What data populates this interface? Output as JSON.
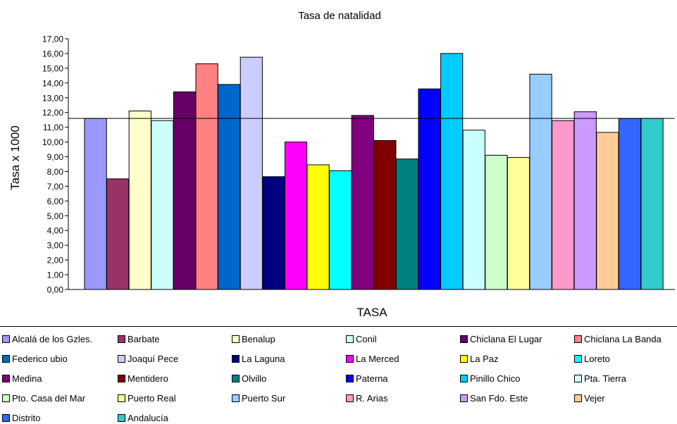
{
  "chart_data": {
    "type": "bar",
    "title": "Tasa  de natalidad",
    "xlabel": "TASA",
    "ylabel": "Tasa  x 1000",
    "ylim": [
      0,
      17
    ],
    "ytick_step": 1,
    "ytick_labels": [
      "0,00",
      "1,00",
      "2,00",
      "3,00",
      "4,00",
      "5,00",
      "6,00",
      "7,00",
      "8,00",
      "9,00",
      "10,00",
      "11,00",
      "12,00",
      "13,00",
      "14,00",
      "15,00",
      "16,00",
      "17,00"
    ],
    "reference_line": 11.6,
    "grid": false,
    "legend_placement": "bottom",
    "series": [
      {
        "name": "Alcalá de los Gzles.",
        "value": 11.6,
        "color": "#9999ff"
      },
      {
        "name": "Barbate",
        "value": 7.5,
        "color": "#993366"
      },
      {
        "name": "Benalup",
        "value": 12.1,
        "color": "#ffffcc"
      },
      {
        "name": "Conil",
        "value": 11.45,
        "color": "#ccffff"
      },
      {
        "name": "Chiclana El Lugar",
        "value": 13.4,
        "color": "#660066"
      },
      {
        "name": "Chiclana La Banda",
        "value": 15.3,
        "color": "#ff8080"
      },
      {
        "name": "Federico ubio",
        "value": 13.9,
        "color": "#0066cc"
      },
      {
        "name": "Joaquí Pece",
        "value": 15.75,
        "color": "#ccccff"
      },
      {
        "name": "La Laguna",
        "value": 7.65,
        "color": "#000080"
      },
      {
        "name": "La Merced",
        "value": 10.0,
        "color": "#ff00ff"
      },
      {
        "name": "La Paz",
        "value": 8.45,
        "color": "#ffff00"
      },
      {
        "name": "Loreto",
        "value": 8.05,
        "color": "#00ffff"
      },
      {
        "name": "Medina",
        "value": 11.8,
        "color": "#800080"
      },
      {
        "name": "Mentidero",
        "value": 10.1,
        "color": "#800000"
      },
      {
        "name": "Olvillo",
        "value": 8.85,
        "color": "#008080"
      },
      {
        "name": "Paterna",
        "value": 13.6,
        "color": "#0000ff"
      },
      {
        "name": "Pinillo Chico",
        "value": 16.0,
        "color": "#00ccff"
      },
      {
        "name": "Pta. Tierra",
        "value": 10.8,
        "color": "#ccffff"
      },
      {
        "name": "Pto. Casa del Mar",
        "value": 9.1,
        "color": "#ccffcc"
      },
      {
        "name": "Puerto Real",
        "value": 8.95,
        "color": "#ffff99"
      },
      {
        "name": "Puerto Sur",
        "value": 14.6,
        "color": "#99ccff"
      },
      {
        "name": "R. Arias",
        "value": 11.45,
        "color": "#ff99cc"
      },
      {
        "name": "San Fdo. Este",
        "value": 12.05,
        "color": "#cc99ff"
      },
      {
        "name": "Vejer",
        "value": 10.65,
        "color": "#ffcc99"
      },
      {
        "name": "Distrito",
        "value": 11.6,
        "color": "#3366ff"
      },
      {
        "name": "Andalucía",
        "value": 11.6,
        "color": "#33cccc"
      }
    ]
  }
}
